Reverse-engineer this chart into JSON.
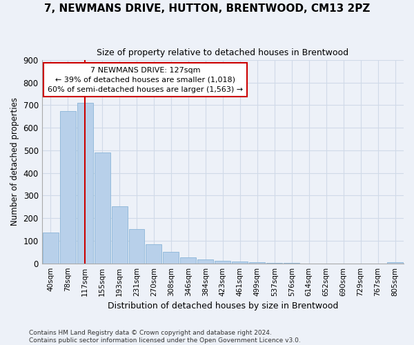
{
  "title": "7, NEWMANS DRIVE, HUTTON, BRENTWOOD, CM13 2PZ",
  "subtitle": "Size of property relative to detached houses in Brentwood",
  "xlabel": "Distribution of detached houses by size in Brentwood",
  "ylabel": "Number of detached properties",
  "bar_color": "#b8d0ea",
  "bar_edge_color": "#8ab4d8",
  "categories": [
    "40sqm",
    "78sqm",
    "117sqm",
    "155sqm",
    "193sqm",
    "231sqm",
    "270sqm",
    "308sqm",
    "346sqm",
    "384sqm",
    "423sqm",
    "461sqm",
    "499sqm",
    "537sqm",
    "576sqm",
    "614sqm",
    "652sqm",
    "690sqm",
    "729sqm",
    "767sqm",
    "805sqm"
  ],
  "values": [
    135,
    675,
    710,
    492,
    253,
    152,
    85,
    50,
    28,
    18,
    10,
    8,
    4,
    2,
    1,
    0,
    0,
    0,
    0,
    0,
    5
  ],
  "ylim": [
    0,
    900
  ],
  "yticks": [
    0,
    100,
    200,
    300,
    400,
    500,
    600,
    700,
    800,
    900
  ],
  "property_line_x": 2,
  "property_line_color": "#cc0000",
  "annotation_line1": "7 NEWMANS DRIVE: 127sqm",
  "annotation_line2": "← 39% of detached houses are smaller (1,018)",
  "annotation_line3": "60% of semi-detached houses are larger (1,563) →",
  "annotation_box_color": "#ffffff",
  "annotation_box_edge_color": "#cc0000",
  "grid_color": "#d0dae8",
  "background_color": "#edf1f8",
  "footer_line1": "Contains HM Land Registry data © Crown copyright and database right 2024.",
  "footer_line2": "Contains public sector information licensed under the Open Government Licence v3.0."
}
